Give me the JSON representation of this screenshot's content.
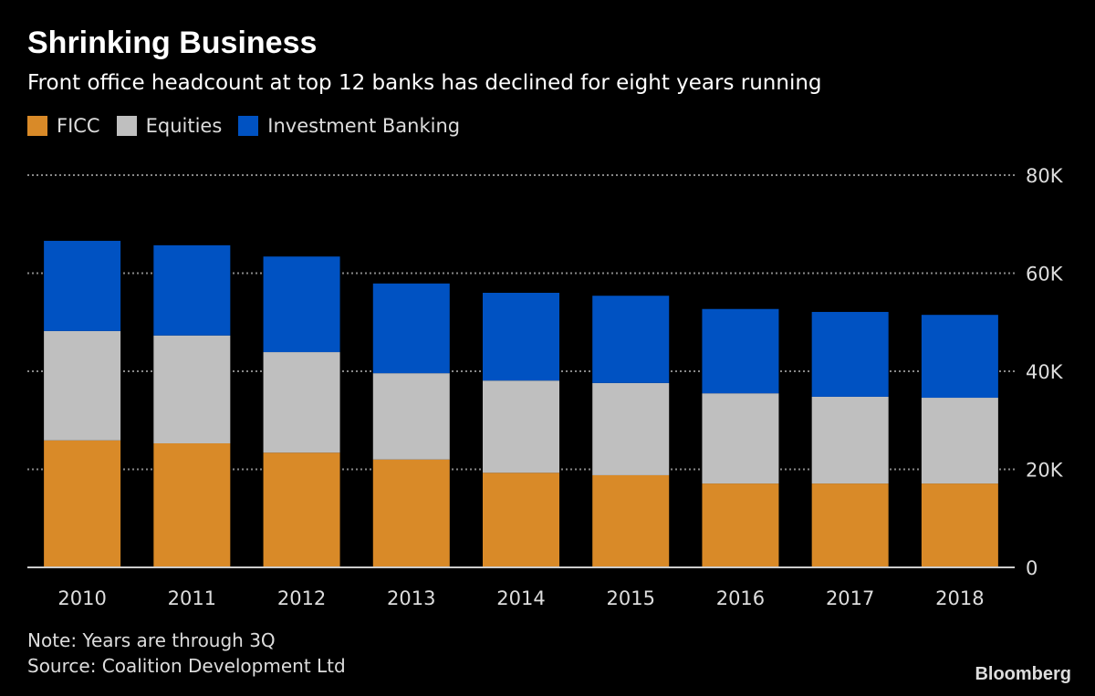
{
  "chart_data": {
    "type": "bar",
    "stacked": true,
    "title": "Shrinking Business",
    "subtitle": "Front office headcount at top 12 banks has declined for eight years running",
    "categories": [
      "2010",
      "2011",
      "2012",
      "2013",
      "2014",
      "2015",
      "2016",
      "2017",
      "2018"
    ],
    "series": [
      {
        "name": "FICC",
        "color": "#d98a28",
        "values": [
          25.9,
          25.3,
          23.4,
          22.0,
          19.3,
          18.8,
          17.1,
          17.1,
          17.1
        ]
      },
      {
        "name": "Equities",
        "color": "#bfbfbf",
        "values": [
          22.3,
          22.0,
          20.5,
          17.6,
          18.8,
          18.8,
          18.4,
          17.7,
          17.5
        ]
      },
      {
        "name": "Investment Banking",
        "color": "#0052c2",
        "values": [
          18.4,
          18.4,
          19.5,
          18.3,
          17.9,
          17.8,
          17.2,
          17.3,
          16.9
        ]
      }
    ],
    "ylim": [
      0,
      80
    ],
    "yticks": [
      0,
      20,
      40,
      60,
      80
    ],
    "ytick_labels": [
      "0",
      "20K",
      "40K",
      "60K",
      "80K"
    ],
    "grid": true,
    "legend_position": "top-left",
    "xlabel": "",
    "ylabel": ""
  },
  "footer": {
    "note": "Note: Years are through 3Q",
    "source": "Source: Coalition Development Ltd",
    "logo": "Bloomberg"
  }
}
